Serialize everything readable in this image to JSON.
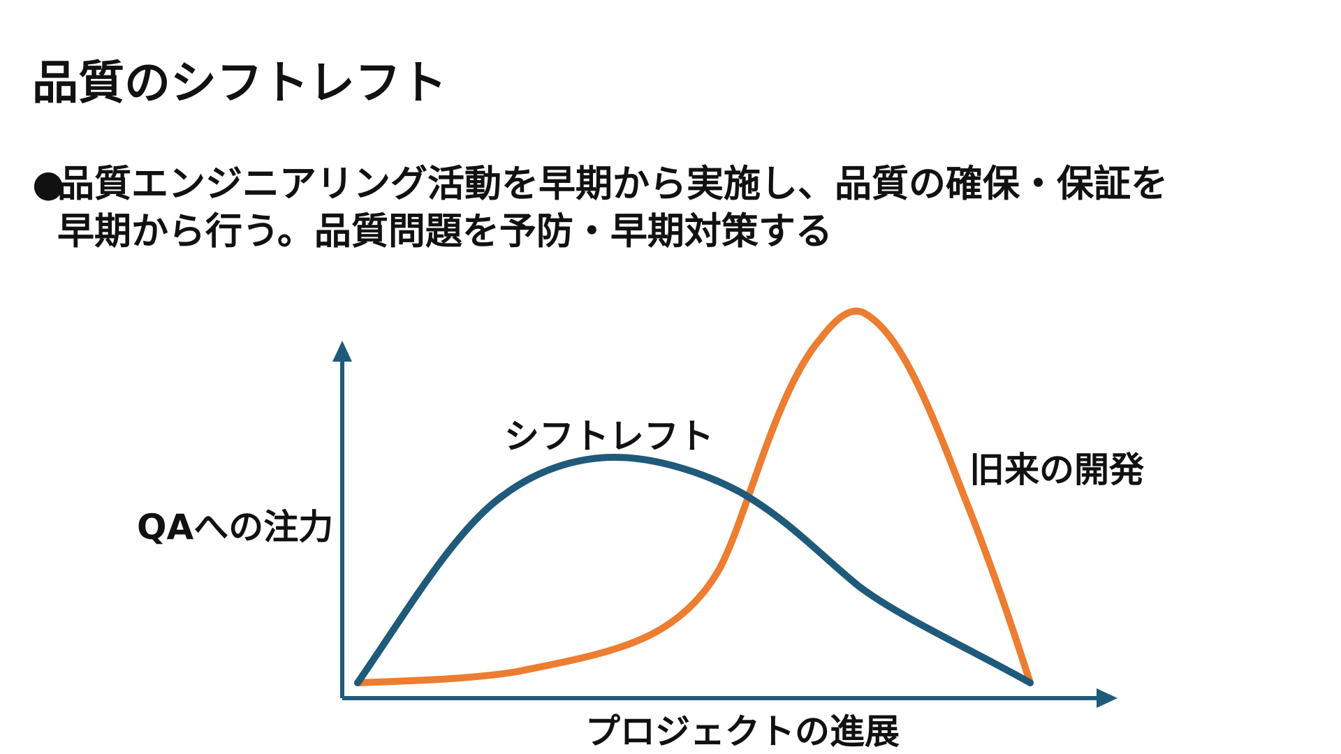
{
  "title": "品質のシフトレフト",
  "bullet": {
    "marker": "●",
    "line1": "品質エンジニアリング活動を早期から実施し、品質の確保・保証を",
    "line2": "早期から行う。品質問題を予防・早期対策する"
  },
  "diagram": {
    "y_axis_label": "QAへの注力",
    "x_axis_label": "プロジェクトの進展",
    "curves": [
      {
        "name": "シフトレフト",
        "color": "#1f5a7a",
        "peak": "early"
      },
      {
        "name": "旧来の開発",
        "color": "#ed7d31",
        "peak": "late"
      }
    ],
    "axis_color": "#1f5a7a"
  }
}
